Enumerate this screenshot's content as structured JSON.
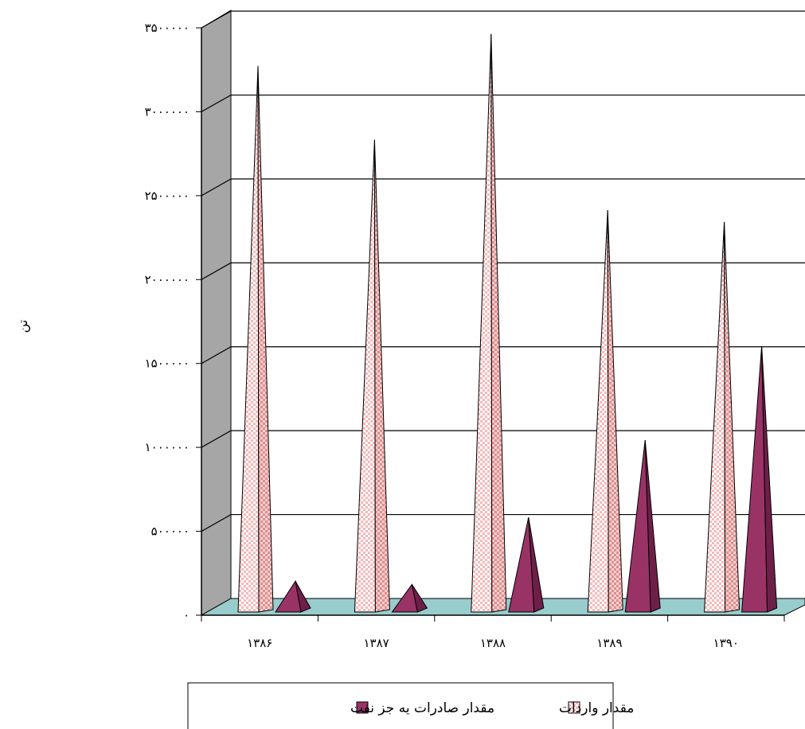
{
  "chart_data": {
    "type": "bar",
    "style": "3d-cone",
    "categories": [
      "۱۳۸۶",
      "۱۳۸۷",
      "۱۳۸۸",
      "۱۳۸۹",
      "۱۳۹۰"
    ],
    "series": [
      {
        "name": "مقدار واردات",
        "values": [
          3240000,
          2800000,
          3430000,
          2380000,
          2310000
        ],
        "color": "#f4a6a6",
        "pattern": "checker"
      },
      {
        "name": "مقدار صادرات یه جز نفت",
        "values": [
          170000,
          150000,
          550000,
          1010000,
          1570000
        ],
        "color": "#993366"
      }
    ],
    "yticks": [
      "۰",
      "۵۰۰۰۰۰",
      "۱۰۰۰۰۰۰",
      "۱۵۰۰۰۰۰",
      "۲۰۰۰۰۰۰",
      "۲۵۰۰۰۰۰",
      "۳۰۰۰۰۰۰",
      "۳۵۰۰۰۰۰"
    ],
    "ylim": [
      0,
      3500000
    ],
    "ylabel": "تن",
    "xlabel": "",
    "grid": true,
    "legend_position": "bottom",
    "wall_color": "#a6a6a6",
    "floor_color": "#99cccc"
  }
}
